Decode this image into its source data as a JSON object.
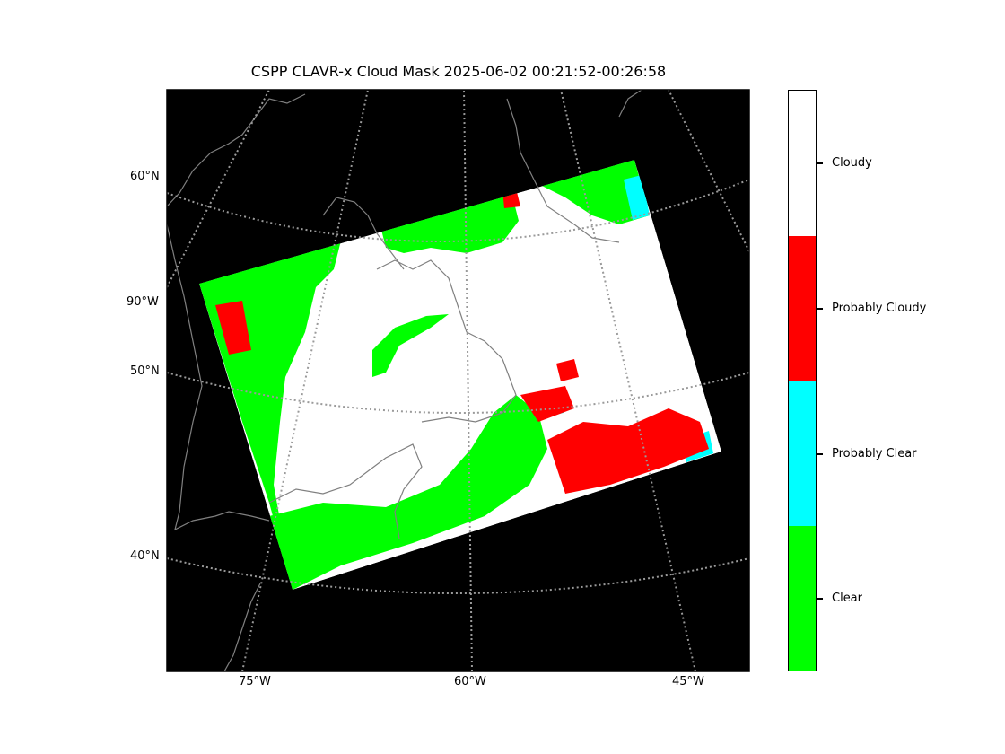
{
  "figure": {
    "title": "CSPP CLAVR-x Cloud Mask 2025-06-02 00:21:52-00:26:58"
  },
  "map": {
    "background_color": "#000000",
    "coastline_color": "#808080",
    "gridline_color": "#9a9a9a",
    "lat_labels": [
      "60°N",
      "90°W",
      "50°N",
      "40°N"
    ],
    "lon_labels": [
      "75°W",
      "60°W",
      "45°W"
    ]
  },
  "legend": {
    "categories": [
      {
        "label": "Cloudy",
        "color": "#ffffff"
      },
      {
        "label": "Probably Cloudy",
        "color": "#ff0000"
      },
      {
        "label": "Probably Clear",
        "color": "#00ffff"
      },
      {
        "label": "Clear",
        "color": "#00ff00"
      }
    ]
  }
}
